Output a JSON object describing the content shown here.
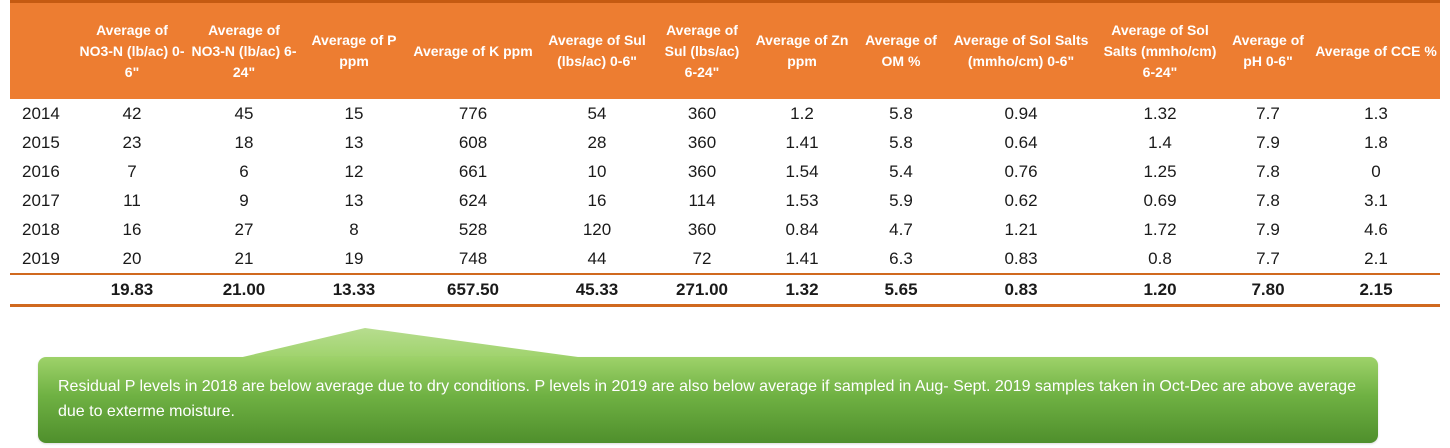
{
  "table": {
    "headers": [
      "",
      "Average of NO3-N (lb/ac) 0-6\"",
      "Average of NO3-N (lb/ac) 6-24\"",
      "Average of P ppm",
      "Average of K ppm",
      "Average of Sul (lbs/ac) 0-6\"",
      "Average of Sul (lbs/ac) 6-24\"",
      "Average of Zn ppm",
      "Average of OM %",
      "Average of Sol Salts (mmho/cm) 0-6\"",
      "Average of Sol Salts (mmho/cm) 6-24\"",
      "Average of pH 0-6\"",
      "Average of CCE %"
    ],
    "rows": [
      [
        "2014",
        "42",
        "45",
        "15",
        "776",
        "54",
        "360",
        "1.2",
        "5.8",
        "0.94",
        "1.32",
        "7.7",
        "1.3"
      ],
      [
        "2015",
        "23",
        "18",
        "13",
        "608",
        "28",
        "360",
        "1.41",
        "5.8",
        "0.64",
        "1.4",
        "7.9",
        "1.8"
      ],
      [
        "2016",
        "7",
        "6",
        "12",
        "661",
        "10",
        "360",
        "1.54",
        "5.4",
        "0.76",
        "1.25",
        "7.8",
        "0"
      ],
      [
        "2017",
        "11",
        "9",
        "13",
        "624",
        "16",
        "114",
        "1.53",
        "5.9",
        "0.62",
        "0.69",
        "7.8",
        "3.1"
      ],
      [
        "2018",
        "16",
        "27",
        "8",
        "528",
        "120",
        "360",
        "0.84",
        "4.7",
        "1.21",
        "1.72",
        "7.9",
        "4.6"
      ],
      [
        "2019",
        "20",
        "21",
        "19",
        "748",
        "44",
        "72",
        "1.41",
        "6.3",
        "0.83",
        "0.8",
        "7.7",
        "2.1"
      ]
    ],
    "totals": [
      "",
      "19.83",
      "21.00",
      "13.33",
      "657.50",
      "45.33",
      "271.00",
      "1.32",
      "5.65",
      "0.83",
      "1.20",
      "7.80",
      "2.15"
    ]
  },
  "callout": {
    "text": "Residual P levels in 2018 are below average due to dry conditions. P levels in 2019  are also below average if sampled in Aug- Sept. 2019 samples taken in Oct-Dec  are above average due to exterme moisture."
  },
  "colors": {
    "header_bg": "#ed7d31",
    "rule": "#d0691f",
    "callout_green": "#6fb143"
  }
}
